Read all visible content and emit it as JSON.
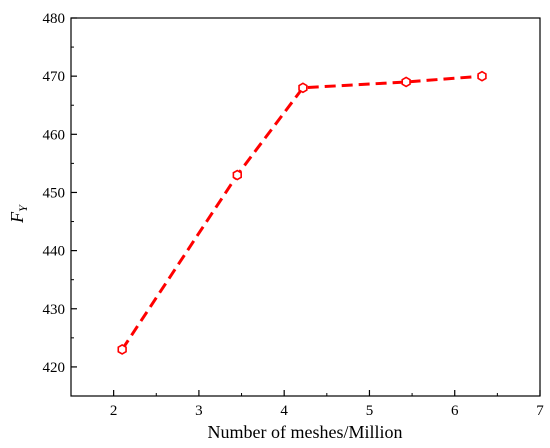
{
  "chart_data": {
    "type": "line",
    "xlabel": "Number of meshes/Million",
    "ylabel_main": "F",
    "ylabel_sub": "Y",
    "xlim": [
      1.5,
      7
    ],
    "ylim": [
      415,
      480
    ],
    "x_ticks": [
      2,
      3,
      4,
      5,
      6,
      7
    ],
    "y_ticks": [
      420,
      430,
      440,
      450,
      460,
      470,
      480
    ],
    "grid": false,
    "series": [
      {
        "color": "#ff0000",
        "line_style": "dashed",
        "marker": "hexagon-open",
        "points": [
          {
            "x": 2.1,
            "y": 423
          },
          {
            "x": 3.45,
            "y": 453
          },
          {
            "x": 4.22,
            "y": 468
          },
          {
            "x": 5.43,
            "y": 469
          },
          {
            "x": 6.32,
            "y": 470
          }
        ]
      }
    ]
  }
}
